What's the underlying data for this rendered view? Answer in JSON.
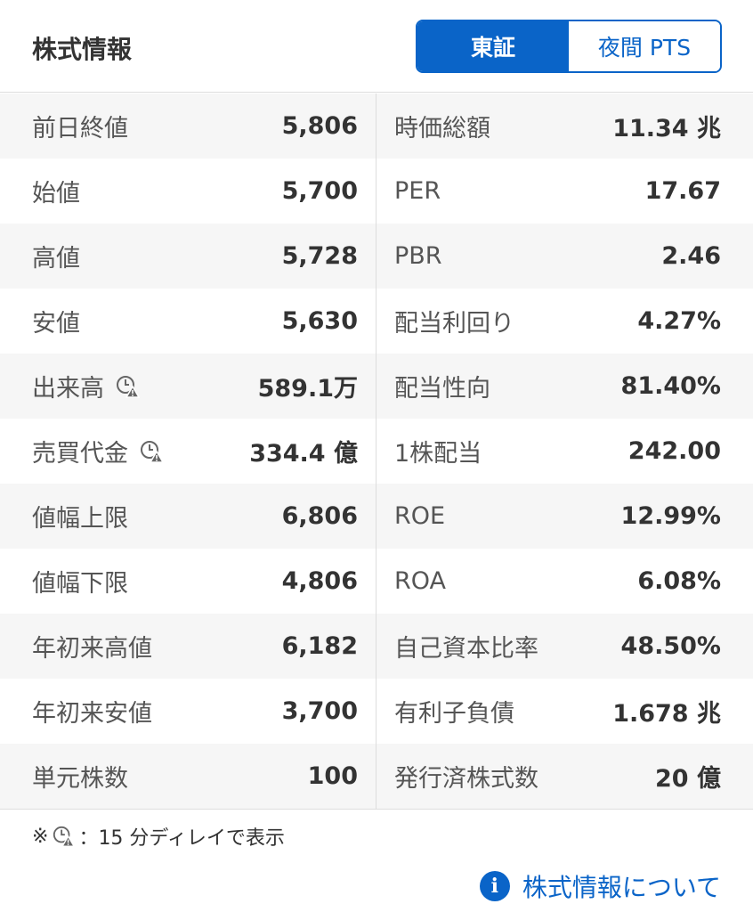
{
  "header": {
    "title": "株式情報",
    "tabs": [
      {
        "label": "東証",
        "active": true
      },
      {
        "label": "夜間 PTS",
        "active": false
      }
    ]
  },
  "rows": [
    {
      "left": {
        "label": "前日終値",
        "value": "5,806"
      },
      "right": {
        "label": "時価総額",
        "value": "11.34 兆"
      }
    },
    {
      "left": {
        "label": "始値",
        "value": "5,700"
      },
      "right": {
        "label": "PER",
        "value": "17.67"
      }
    },
    {
      "left": {
        "label": "高値",
        "value": "5,728"
      },
      "right": {
        "label": "PBR",
        "value": "2.46"
      }
    },
    {
      "left": {
        "label": "安値",
        "value": "5,630"
      },
      "right": {
        "label": "配当利回り",
        "value": "4.27%"
      }
    },
    {
      "left": {
        "label": "出来高",
        "value": "589.1万",
        "delayed": true
      },
      "right": {
        "label": "配当性向",
        "value": "81.40%"
      }
    },
    {
      "left": {
        "label": "売買代金",
        "value": "334.4 億",
        "delayed": true
      },
      "right": {
        "label": "1株配当",
        "value": "242.00"
      }
    },
    {
      "left": {
        "label": "値幅上限",
        "value": "6,806"
      },
      "right": {
        "label": "ROE",
        "value": "12.99%"
      }
    },
    {
      "left": {
        "label": "値幅下限",
        "value": "4,806"
      },
      "right": {
        "label": "ROA",
        "value": "6.08%"
      }
    },
    {
      "left": {
        "label": "年初来高値",
        "value": "6,182"
      },
      "right": {
        "label": "自己資本比率",
        "value": "48.50%"
      }
    },
    {
      "left": {
        "label": "年初来安値",
        "value": "3,700"
      },
      "right": {
        "label": "有利子負債",
        "value": "1.678 兆"
      }
    },
    {
      "left": {
        "label": "単元株数",
        "value": "100"
      },
      "right": {
        "label": "発行済株式数",
        "value": "20 億"
      }
    }
  ],
  "footer": {
    "note_prefix": "※",
    "note_text": "：15 分ディレイで表示",
    "about_label": "株式情報について",
    "delay_icon": "clock-warning-icon",
    "info_icon": "info-icon"
  },
  "colors": {
    "accent": "#0a64c8",
    "stripe": "#f6f6f6"
  }
}
